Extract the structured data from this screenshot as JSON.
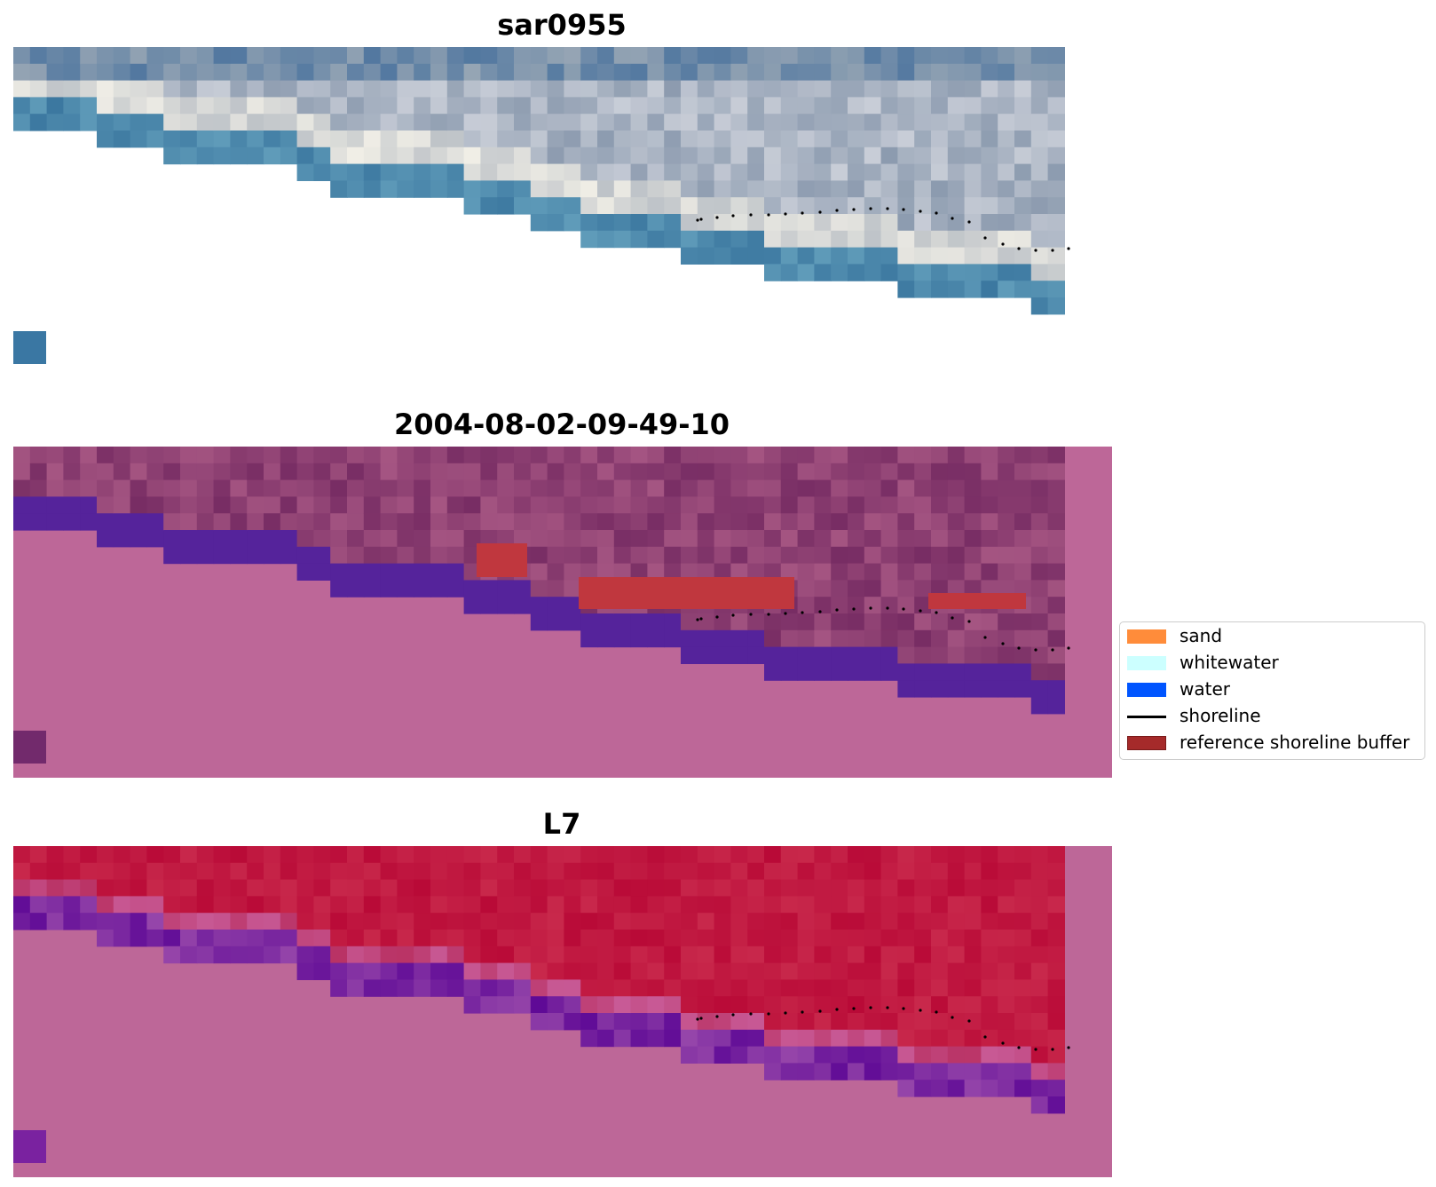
{
  "panels": [
    {
      "title": "sar0955",
      "variant": "rgb"
    },
    {
      "title": "2004-08-02-09-49-10",
      "variant": "classified"
    },
    {
      "title": "L7",
      "variant": "index"
    }
  ],
  "legend": {
    "items": [
      {
        "label": "sand",
        "kind": "patch",
        "color": "#ff8c3a"
      },
      {
        "label": "whitewater",
        "kind": "patch",
        "color": "#ccffff"
      },
      {
        "label": "water",
        "kind": "patch",
        "color": "#0055ff"
      },
      {
        "label": "shoreline",
        "kind": "line",
        "color": "#000000"
      },
      {
        "label": "reference shoreline buffer",
        "kind": "patch",
        "color": "#a52a2a"
      }
    ]
  },
  "colors": {
    "nodata_pink": "#bd6798",
    "classified_water": "#55239b",
    "buffer_red": "#c0373e",
    "index_red": "#be1440",
    "index_purple": "#6a0fa3"
  }
}
